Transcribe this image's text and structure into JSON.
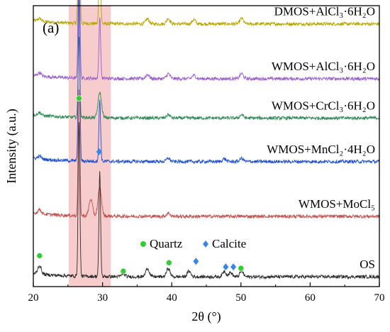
{
  "chart_data": {
    "type": "line",
    "panel_label": "(a)",
    "xlabel": "2θ (°)",
    "ylabel": "Intensity (a.u.)",
    "xlim": [
      20,
      70
    ],
    "xticks": [
      20,
      30,
      40,
      50,
      60,
      70
    ],
    "y_ticks_shown": false,
    "grid": false,
    "highlight_band": {
      "x_start": 25.1,
      "x_end": 31.2,
      "color": "#f6cccc"
    },
    "legend": {
      "placement": "center-bottom",
      "entries": [
        {
          "label": "Quartz",
          "marker": "circle",
          "color": "#33cc33"
        },
        {
          "label": "Calcite",
          "marker": "diamond",
          "color": "#3a86e8"
        }
      ]
    },
    "series": [
      {
        "name": "DMOS+AlCl₃·6H₂O",
        "color": "#b5a600",
        "baseline": 0.935,
        "peaks": [
          [
            20.9,
            0.01
          ],
          [
            26.6,
            0.54
          ],
          [
            29.6,
            0.28
          ],
          [
            36.5,
            0.018
          ],
          [
            39.5,
            0.02
          ],
          [
            43.2,
            0.015
          ],
          [
            50.1,
            0.02
          ]
        ]
      },
      {
        "name": "WMOS+AlCl₃·6H₂O",
        "color": "#9a5cd0",
        "baseline": 0.74,
        "peaks": [
          [
            20.9,
            0.012
          ],
          [
            26.6,
            0.52
          ],
          [
            29.6,
            0.22
          ],
          [
            36.5,
            0.015
          ],
          [
            39.5,
            0.018
          ],
          [
            43.2,
            0.012
          ],
          [
            50.1,
            0.018
          ]
        ]
      },
      {
        "name": "WMOS+CrCl₃·6H₂O",
        "color": "#2e8b57",
        "baseline": 0.6,
        "peaks": [
          [
            20.9,
            0.01
          ],
          [
            26.6,
            0.29
          ],
          [
            29.6,
            0.09
          ],
          [
            39.5,
            0.012
          ],
          [
            50.1,
            0.012
          ]
        ]
      },
      {
        "name": "WMOS+MnCl₂·4H₂O",
        "color": "#1e4fd0",
        "baseline": 0.445,
        "peaks": [
          [
            20.9,
            0.01
          ],
          [
            26.6,
            0.6
          ],
          [
            29.6,
            0.22
          ],
          [
            39.5,
            0.012
          ],
          [
            47.6,
            0.01
          ],
          [
            50.1,
            0.012
          ]
        ]
      },
      {
        "name": "WMOS+MoCl₅",
        "color": "#c0504d",
        "baseline": 0.25,
        "peaks": [
          [
            20.9,
            0.015
          ],
          [
            26.6,
            0.45
          ],
          [
            28.3,
            0.06
          ],
          [
            29.6,
            0.1
          ],
          [
            39.5,
            0.012
          ]
        ]
      },
      {
        "name": "OS",
        "color": "#2b2b2b",
        "baseline": 0.035,
        "peaks": [
          [
            20.9,
            0.03
          ],
          [
            26.6,
            0.55
          ],
          [
            29.6,
            0.37
          ],
          [
            33.0,
            0.01
          ],
          [
            36.5,
            0.03
          ],
          [
            39.5,
            0.03
          ],
          [
            42.5,
            0.02
          ],
          [
            47.6,
            0.02
          ],
          [
            48.5,
            0.015
          ],
          [
            50.1,
            0.02
          ]
        ]
      }
    ],
    "markers": {
      "quartz": [
        {
          "x": 20.9,
          "y": 0.11
        },
        {
          "x": 26.6,
          "y": 0.67
        },
        {
          "x": 33.0,
          "y": 0.055
        },
        {
          "x": 39.6,
          "y": 0.085
        },
        {
          "x": 50.0,
          "y": 0.065
        }
      ],
      "calcite": [
        {
          "x": 29.5,
          "y": 0.48
        },
        {
          "x": 43.5,
          "y": 0.09
        },
        {
          "x": 47.8,
          "y": 0.07
        },
        {
          "x": 48.9,
          "y": 0.07
        }
      ]
    }
  }
}
